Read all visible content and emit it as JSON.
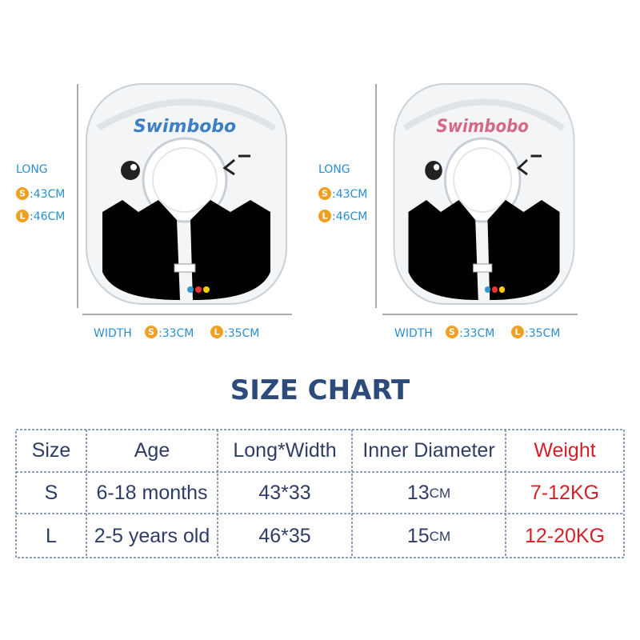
{
  "products": [
    {
      "brand": "Swimbobo",
      "long_label": "LONG",
      "long": [
        {
          "size": "S",
          "value": ":43CM"
        },
        {
          "size": "L",
          "value": ":46CM"
        }
      ],
      "width_label": "WIDTH",
      "width": [
        {
          "size": "S",
          "value": ":33CM"
        },
        {
          "size": "L",
          "value": ":35CM"
        }
      ]
    },
    {
      "brand": "Swimbobo",
      "long_label": "LONG",
      "long": [
        {
          "size": "S",
          "value": ":43CM"
        },
        {
          "size": "L",
          "value": ":46CM"
        }
      ],
      "width_label": "WIDTH",
      "width": [
        {
          "size": "S",
          "value": ":33CM"
        },
        {
          "size": "L",
          "value": ":35CM"
        }
      ]
    }
  ],
  "title": "SIZE CHART",
  "table": {
    "header": [
      "Size",
      "Age",
      "Long*Width",
      "Inner Diameter",
      "Weight"
    ],
    "rows": [
      [
        "S",
        "6-18 months",
        "43*33",
        {
          "number": "13",
          "unit": "CM"
        },
        "7-12KG"
      ],
      [
        "L",
        "2-5 years old",
        "46*35",
        {
          "number": "15",
          "unit": "CM"
        },
        "12-20KG"
      ]
    ]
  }
}
